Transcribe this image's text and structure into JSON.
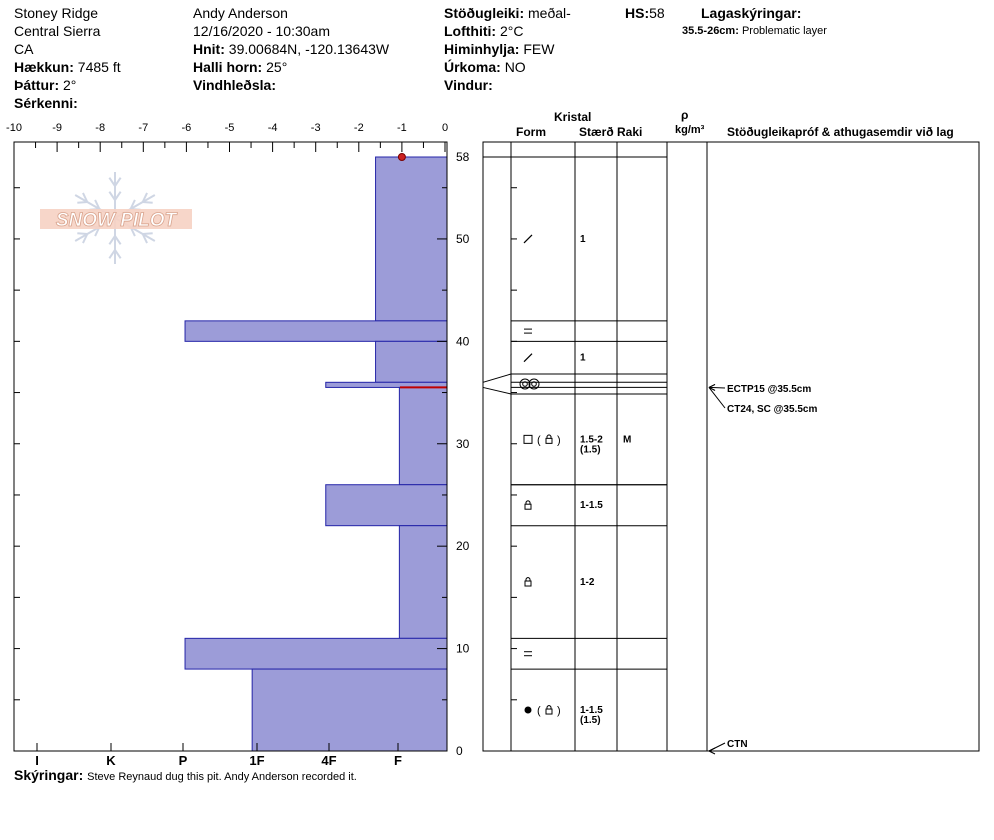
{
  "header": {
    "location1": "Stoney Ridge",
    "location2": "Central Sierra",
    "location3": "CA",
    "elevation_label": "Hækkun:",
    "elevation_value": "7485 ft",
    "aspect_label": "Þáttur:",
    "aspect_value": "2°",
    "features_label": "Sérkenni:",
    "observer": "Andy Anderson",
    "datetime": "12/16/2020 - 10:30am",
    "coords_label": "Hnit:",
    "coords_value": "39.00684N, -120.13643W",
    "slope_label": "Halli horn:",
    "slope_value": "25°",
    "wind_loading_label": "Vindhleðsla:",
    "stability_label": "Stöðugleiki:",
    "stability_value": "meðal-",
    "airtemp_label": "Lofthiti:",
    "airtemp_value": "2°C",
    "sky_label": "Himinhylja:",
    "sky_value": "FEW",
    "precip_label": "Úrkoma:",
    "precip_value": "NO",
    "wind_label": "Vindur:",
    "hs_label": "HS:",
    "hs_value": "58",
    "legend_label": "Lagaskýringar:",
    "legend_range": "35.5-26cm:",
    "legend_text": "Problematic layer",
    "logo_text": "SNOW PILOT"
  },
  "notes": {
    "label": "Skýringar:",
    "text": "Steve Reynaud dug this pit. Andy Anderson recorded it."
  },
  "columns": {
    "crystal": "Kristal",
    "form": "Form",
    "size": "Stærð",
    "moisture": "Raki",
    "rho": "ρ",
    "density_unit": "kg/m³",
    "tests": "Stöðugleikapróf & athugasemdir við lag"
  },
  "chart_data": {
    "type": "bar",
    "orientation": "horizontal",
    "xlabel": "",
    "ylabel": "",
    "temperature_axis": {
      "ticks": [
        -10,
        -9,
        -8,
        -7,
        -6,
        -5,
        -4,
        -3,
        -2,
        -1,
        0
      ],
      "range": [
        -10,
        0
      ]
    },
    "hardness_axis": {
      "ticks": [
        "I",
        "K",
        "P",
        "1F",
        "4F",
        "F"
      ]
    },
    "height_axis": {
      "ticks": [
        0,
        10,
        20,
        30,
        40,
        50,
        58
      ],
      "range": [
        0,
        58
      ]
    },
    "temperature_points": [
      {
        "height": 58,
        "temp": -1
      }
    ],
    "problematic_layer_line": 35.5,
    "layers": [
      {
        "top": 58,
        "bottom": 42,
        "hardness_value": 1.65,
        "form": "slash",
        "size": "1",
        "size2": "",
        "moisture": ""
      },
      {
        "top": 42,
        "bottom": 40,
        "hardness_value": 6.05,
        "form": "equals",
        "size": "",
        "size2": "",
        "moisture": ""
      },
      {
        "top": 40,
        "bottom": 36,
        "hardness_value": 1.65,
        "form": "slash",
        "size": "1",
        "size2": "",
        "moisture": ""
      },
      {
        "top": 36,
        "bottom": 35.5,
        "hardness_value": 2.8,
        "form": "double-circle",
        "size": "",
        "size2": "",
        "moisture": ""
      },
      {
        "top": 35.5,
        "bottom": 26,
        "hardness_value": 1.1,
        "form": "square-lock",
        "size": "1.5-2",
        "size2": "(1.5)",
        "moisture": "M"
      },
      {
        "top": 26,
        "bottom": 22,
        "hardness_value": 2.8,
        "form": "lock",
        "size": "1-1.5",
        "size2": "",
        "moisture": ""
      },
      {
        "top": 22,
        "bottom": 11,
        "hardness_value": 1.1,
        "form": "lock",
        "size": "1-2",
        "size2": "",
        "moisture": ""
      },
      {
        "top": 11,
        "bottom": 8,
        "hardness_value": 6.05,
        "form": "equals",
        "size": "",
        "size2": "",
        "moisture": ""
      },
      {
        "top": 8,
        "bottom": 0,
        "hardness_value": 4.5,
        "form": "dot-lock",
        "size": "1-1.5",
        "size2": "(1.5)",
        "moisture": ""
      }
    ],
    "tests": [
      {
        "height": 35.5,
        "text": "ECTP15 @35.5cm"
      },
      {
        "height": 35.5,
        "text": "CT24, SC @35.5cm"
      },
      {
        "height": 0,
        "text": "CTN"
      }
    ]
  }
}
